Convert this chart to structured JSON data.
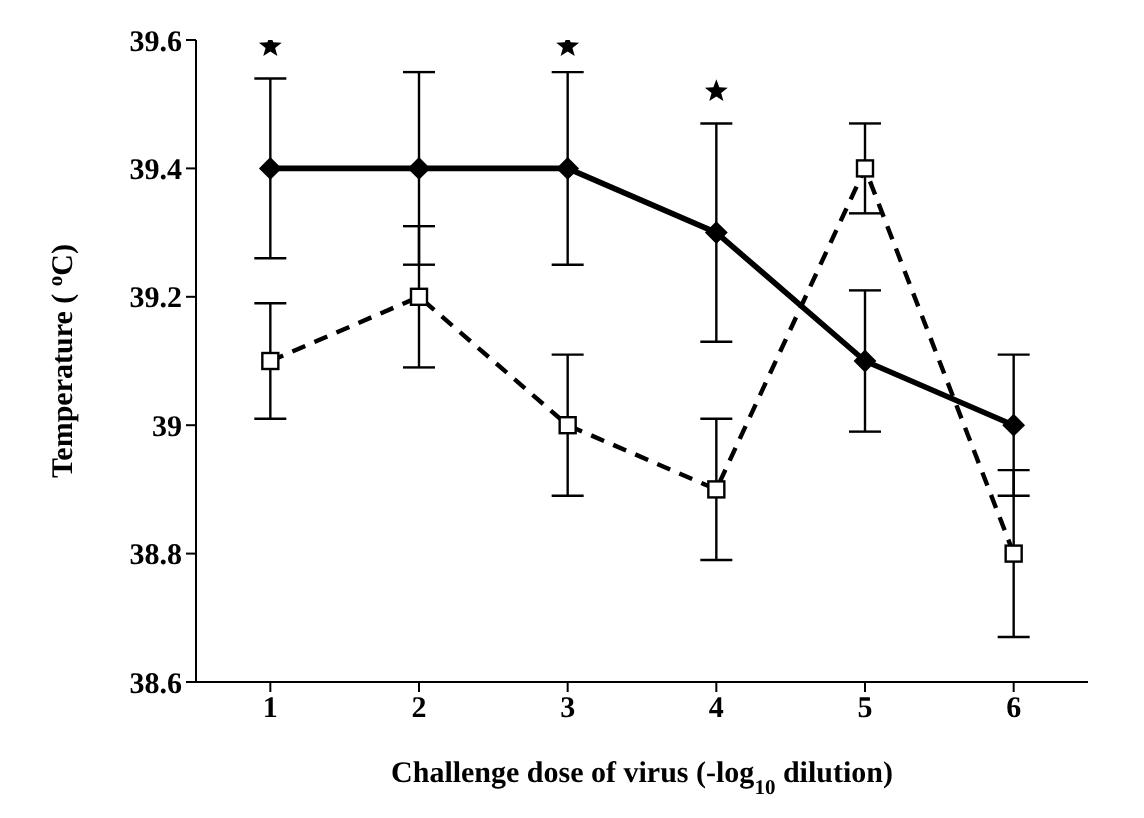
{
  "chart_data": {
    "type": "line",
    "xlabel": "Challenge dose of virus (-log$_{10}$ dilution)",
    "ylabel": "Temperature ( $^{o}$C)",
    "categories": [
      "1",
      "2",
      "3",
      "4",
      "5",
      "6"
    ],
    "series": [
      {
        "color": "#000000",
        "values": [
          39.4,
          39.4,
          39.4,
          39.3,
          39.1,
          39.0
        ],
        "errors": [
          0.14,
          0.15,
          0.15,
          0.17,
          0.11,
          0.11
        ],
        "marker": "diamond",
        "line_style": "solid"
      },
      {
        "color": "#000000",
        "values": [
          39.1,
          39.2,
          39.0,
          38.9,
          39.4,
          38.8
        ],
        "errors": [
          0.09,
          0.11,
          0.11,
          0.11,
          0.07,
          0.13
        ],
        "marker": "square",
        "line_style": "dashed"
      },
      {
        "type": "scatter",
        "color": "#000000",
        "x": [
          "1",
          "3",
          "4"
        ],
        "values": [
          39.59,
          39.59,
          39.52
        ],
        "marker": "star"
      }
    ],
    "ylim": [
      38.6,
      39.6
    ],
    "yticks": [
      38.6,
      38.8,
      39,
      39.2,
      39.4,
      39.6
    ],
    "grid": false
  }
}
